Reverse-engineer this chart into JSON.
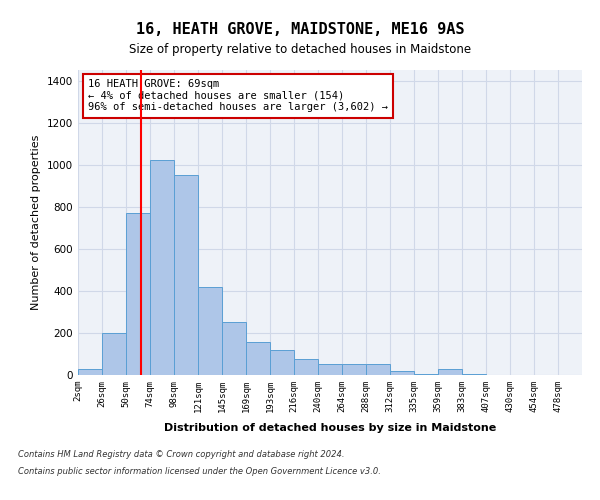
{
  "title": "16, HEATH GROVE, MAIDSTONE, ME16 9AS",
  "subtitle": "Size of property relative to detached houses in Maidstone",
  "xlabel": "Distribution of detached houses by size in Maidstone",
  "ylabel": "Number of detached properties",
  "categories": [
    "2sqm",
    "26sqm",
    "50sqm",
    "74sqm",
    "98sqm",
    "121sqm",
    "145sqm",
    "169sqm",
    "193sqm",
    "216sqm",
    "240sqm",
    "264sqm",
    "288sqm",
    "312sqm",
    "335sqm",
    "359sqm",
    "383sqm",
    "407sqm",
    "430sqm",
    "454sqm",
    "478sqm"
  ],
  "values": [
    30,
    200,
    770,
    1020,
    950,
    420,
    250,
    155,
    120,
    75,
    50,
    50,
    50,
    20,
    5,
    30,
    5,
    0,
    0,
    0
  ],
  "bar_color": "#aec6e8",
  "bar_edge_color": "#5a9fd4",
  "grid_color": "#d0d8e8",
  "background_color": "#eef2f8",
  "red_line_x": 2.62,
  "annotation_text": "16 HEATH GROVE: 69sqm\n← 4% of detached houses are smaller (154)\n96% of semi-detached houses are larger (3,602) →",
  "annotation_box_color": "#ffffff",
  "annotation_border_color": "#cc0000",
  "ylim": [
    0,
    1450
  ],
  "yticks": [
    0,
    200,
    400,
    600,
    800,
    1000,
    1200,
    1400
  ],
  "footer_line1": "Contains HM Land Registry data © Crown copyright and database right 2024.",
  "footer_line2": "Contains public sector information licensed under the Open Government Licence v3.0."
}
